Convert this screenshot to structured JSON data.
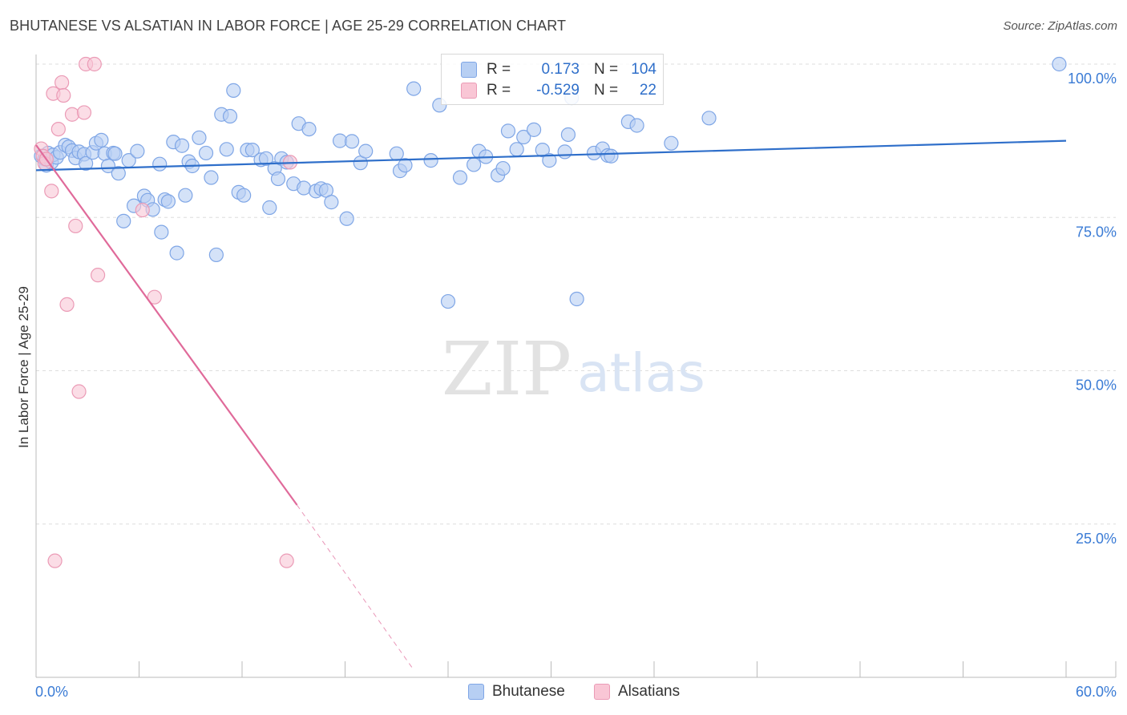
{
  "title": "BHUTANESE VS ALSATIAN IN LABOR FORCE | AGE 25-29 CORRELATION CHART",
  "source": "Source: ZipAtlas.com",
  "watermark": {
    "zip": "ZIP",
    "atlas": "atlas"
  },
  "stats": {
    "r_label": "R =",
    "n_label": "N =",
    "blue": {
      "r": "0.173",
      "n": "104"
    },
    "pink": {
      "r": "-0.529",
      "n": "22"
    }
  },
  "legend": {
    "blue": "Bhutanese",
    "pink": "Alsatians"
  },
  "colors": {
    "blue_fill": "#b7cff3",
    "blue_stroke": "#7fa6e6",
    "blue_line": "#2f6fca",
    "pink_fill": "#f9c6d5",
    "pink_stroke": "#eb9bb6",
    "pink_line": "#e06a9a",
    "tick_text": "#3a7bd5"
  },
  "chart_data": {
    "type": "scatter",
    "title": "BHUTANESE VS ALSATIAN IN LABOR FORCE | AGE 25-29 CORRELATION CHART",
    "xlabel": "",
    "ylabel": "In Labor Force | Age 25-29",
    "xlim": [
      0,
      60
    ],
    "ylim": [
      0,
      100
    ],
    "x_tick_labels": [
      "0.0%",
      "60.0%"
    ],
    "y_ticks": [
      25,
      50,
      75,
      100
    ],
    "y_tick_labels": [
      "25.0%",
      "50.0%",
      "75.0%",
      "100.0%"
    ],
    "grid": true,
    "legend_position": "bottom-center",
    "series": [
      {
        "name": "Bhutanese",
        "trend": {
          "x": [
            0,
            60
          ],
          "y": [
            82.7,
            87.5
          ]
        },
        "points": [
          [
            0.3,
            85.0
          ],
          [
            0.5,
            84.5
          ],
          [
            0.6,
            83.5
          ],
          [
            0.7,
            85.5
          ],
          [
            0.9,
            84.0
          ],
          [
            1.0,
            85.2
          ],
          [
            1.2,
            84.8
          ],
          [
            1.4,
            85.6
          ],
          [
            1.7,
            86.8
          ],
          [
            1.9,
            86.5
          ],
          [
            2.1,
            85.9
          ],
          [
            2.3,
            84.7
          ],
          [
            2.5,
            85.7
          ],
          [
            2.8,
            85.3
          ],
          [
            2.9,
            83.8
          ],
          [
            3.3,
            85.6
          ],
          [
            3.5,
            87.1
          ],
          [
            3.8,
            87.6
          ],
          [
            4.0,
            85.4
          ],
          [
            4.2,
            83.4
          ],
          [
            4.5,
            85.5
          ],
          [
            4.6,
            85.4
          ],
          [
            4.8,
            82.2
          ],
          [
            5.1,
            74.4
          ],
          [
            5.4,
            84.3
          ],
          [
            5.7,
            76.9
          ],
          [
            5.9,
            85.8
          ],
          [
            6.3,
            78.5
          ],
          [
            6.5,
            77.8
          ],
          [
            6.8,
            76.3
          ],
          [
            7.2,
            83.7
          ],
          [
            7.3,
            72.6
          ],
          [
            7.5,
            77.9
          ],
          [
            7.7,
            77.6
          ],
          [
            8.0,
            87.3
          ],
          [
            8.2,
            69.2
          ],
          [
            8.5,
            86.7
          ],
          [
            8.7,
            78.6
          ],
          [
            8.9,
            84.1
          ],
          [
            9.1,
            83.4
          ],
          [
            9.5,
            88.0
          ],
          [
            9.9,
            85.5
          ],
          [
            10.2,
            81.5
          ],
          [
            10.5,
            68.9
          ],
          [
            10.8,
            91.8
          ],
          [
            11.1,
            86.1
          ],
          [
            11.3,
            91.5
          ],
          [
            11.5,
            95.7
          ],
          [
            11.8,
            79.1
          ],
          [
            12.1,
            78.6
          ],
          [
            12.3,
            86.0
          ],
          [
            12.6,
            86.0
          ],
          [
            13.1,
            84.4
          ],
          [
            13.4,
            84.6
          ],
          [
            13.6,
            76.6
          ],
          [
            13.9,
            83.0
          ],
          [
            14.1,
            81.3
          ],
          [
            14.3,
            84.6
          ],
          [
            14.6,
            84.0
          ],
          [
            15.0,
            80.5
          ],
          [
            15.3,
            90.3
          ],
          [
            15.6,
            79.8
          ],
          [
            15.9,
            89.4
          ],
          [
            16.3,
            79.3
          ],
          [
            16.6,
            79.7
          ],
          [
            16.9,
            79.4
          ],
          [
            17.2,
            77.5
          ],
          [
            17.7,
            87.5
          ],
          [
            18.1,
            74.8
          ],
          [
            18.4,
            87.4
          ],
          [
            18.9,
            83.9
          ],
          [
            19.2,
            85.8
          ],
          [
            21.0,
            85.4
          ],
          [
            21.2,
            82.6
          ],
          [
            21.5,
            83.5
          ],
          [
            22.0,
            96.0
          ],
          [
            23.0,
            84.3
          ],
          [
            23.5,
            93.3
          ],
          [
            24.0,
            61.3
          ],
          [
            24.7,
            81.5
          ],
          [
            25.5,
            83.6
          ],
          [
            25.8,
            85.8
          ],
          [
            26.2,
            84.9
          ],
          [
            26.9,
            81.9
          ],
          [
            27.2,
            83.0
          ],
          [
            27.5,
            89.1
          ],
          [
            28.0,
            86.1
          ],
          [
            28.4,
            88.1
          ],
          [
            29.0,
            89.3
          ],
          [
            29.5,
            86.0
          ],
          [
            29.9,
            84.3
          ],
          [
            30.8,
            85.7
          ],
          [
            31.0,
            88.5
          ],
          [
            31.2,
            94.5
          ],
          [
            31.5,
            61.7
          ],
          [
            32.5,
            85.5
          ],
          [
            33.0,
            86.2
          ],
          [
            33.3,
            85.1
          ],
          [
            33.5,
            85.0
          ],
          [
            34.5,
            90.6
          ],
          [
            35.0,
            90.0
          ],
          [
            37.0,
            87.1
          ],
          [
            39.2,
            91.2
          ],
          [
            59.6,
            100.0
          ]
        ]
      },
      {
        "name": "Alsatians",
        "trend": {
          "x": [
            0,
            15.2
          ],
          "y": [
            86.8,
            28.1
          ]
        },
        "trend_dashed": {
          "x": [
            15.2,
            22.0
          ],
          "y": [
            28.1,
            1.2
          ]
        },
        "points": [
          [
            0.3,
            86.2
          ],
          [
            0.4,
            85.0
          ],
          [
            0.5,
            83.8
          ],
          [
            0.6,
            84.5
          ],
          [
            0.9,
            79.3
          ],
          [
            1.0,
            95.2
          ],
          [
            1.1,
            19.0
          ],
          [
            1.3,
            89.4
          ],
          [
            1.5,
            97.0
          ],
          [
            1.6,
            94.9
          ],
          [
            1.8,
            60.8
          ],
          [
            2.1,
            91.8
          ],
          [
            2.3,
            73.6
          ],
          [
            2.5,
            46.6
          ],
          [
            2.8,
            92.1
          ],
          [
            2.9,
            100.0
          ],
          [
            3.4,
            100.0
          ],
          [
            3.6,
            65.6
          ],
          [
            6.2,
            76.2
          ],
          [
            6.9,
            62.0
          ],
          [
            14.6,
            19.0
          ],
          [
            14.8,
            84.0
          ]
        ]
      }
    ]
  }
}
